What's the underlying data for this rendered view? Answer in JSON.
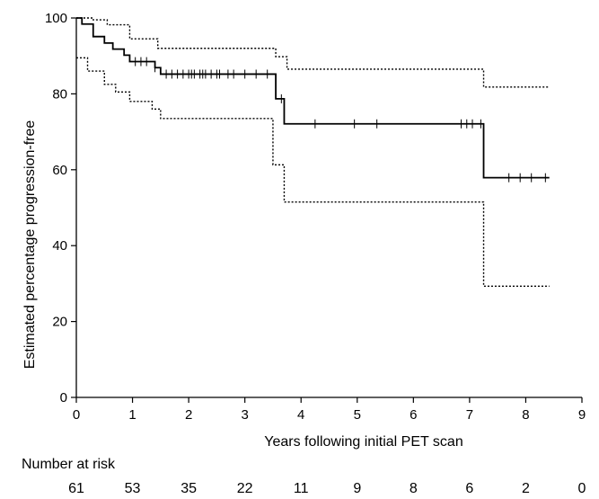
{
  "chart_data": {
    "type": "line",
    "title": "",
    "xlabel": "Years following initial PET scan",
    "ylabel": "Estimated percentage progression-free",
    "xlim": [
      0,
      9
    ],
    "ylim": [
      0,
      100
    ],
    "x_ticks": [
      "0",
      "1",
      "2",
      "3",
      "4",
      "5",
      "6",
      "7",
      "8",
      "9"
    ],
    "y_ticks": [
      "0",
      "20",
      "40",
      "60",
      "80",
      "100"
    ],
    "grid": false,
    "legend": "none",
    "series": [
      {
        "role": "estimate",
        "style": "solid",
        "steps": [
          [
            0,
            100
          ],
          [
            0.1,
            98.4
          ],
          [
            0.3,
            95.1
          ],
          [
            0.5,
            93.4
          ],
          [
            0.65,
            91.8
          ],
          [
            0.85,
            90.2
          ],
          [
            0.95,
            88.5
          ],
          [
            1.4,
            86.9
          ],
          [
            1.5,
            85.2
          ],
          [
            3.55,
            78.7
          ],
          [
            3.7,
            72.1
          ],
          [
            7.25,
            57.9
          ],
          [
            8.42,
            57.9
          ]
        ],
        "censored": [
          1.05,
          1.15,
          1.25,
          1.4,
          1.6,
          1.7,
          1.8,
          1.9,
          2.0,
          2.05,
          2.1,
          2.2,
          2.25,
          2.3,
          2.4,
          2.5,
          2.55,
          2.7,
          2.8,
          3.0,
          3.2,
          3.4,
          3.65,
          4.25,
          4.95,
          5.35,
          6.85,
          6.95,
          7.05,
          7.2,
          7.7,
          7.9,
          8.1,
          8.35
        ]
      },
      {
        "role": "upper confidence limit",
        "style": "dotted",
        "steps": [
          [
            0,
            100
          ],
          [
            0.3,
            99.5
          ],
          [
            0.55,
            98.2
          ],
          [
            0.95,
            94.5
          ],
          [
            1.45,
            92.0
          ],
          [
            3.55,
            89.8
          ],
          [
            3.75,
            86.5
          ],
          [
            7.25,
            81.8
          ],
          [
            8.42,
            81.8
          ]
        ]
      },
      {
        "role": "lower confidence limit",
        "style": "dotted",
        "steps": [
          [
            0,
            89.5
          ],
          [
            0.2,
            86.0
          ],
          [
            0.5,
            82.5
          ],
          [
            0.7,
            80.5
          ],
          [
            0.95,
            78.0
          ],
          [
            1.35,
            76.0
          ],
          [
            1.5,
            73.5
          ],
          [
            3.5,
            61.3
          ],
          [
            3.7,
            51.5
          ],
          [
            7.25,
            29.3
          ],
          [
            8.42,
            29.3
          ]
        ]
      }
    ],
    "risk_table": {
      "label": "Number at risk",
      "values": [
        "61",
        "53",
        "35",
        "22",
        "11",
        "9",
        "8",
        "6",
        "2",
        "0"
      ]
    }
  }
}
